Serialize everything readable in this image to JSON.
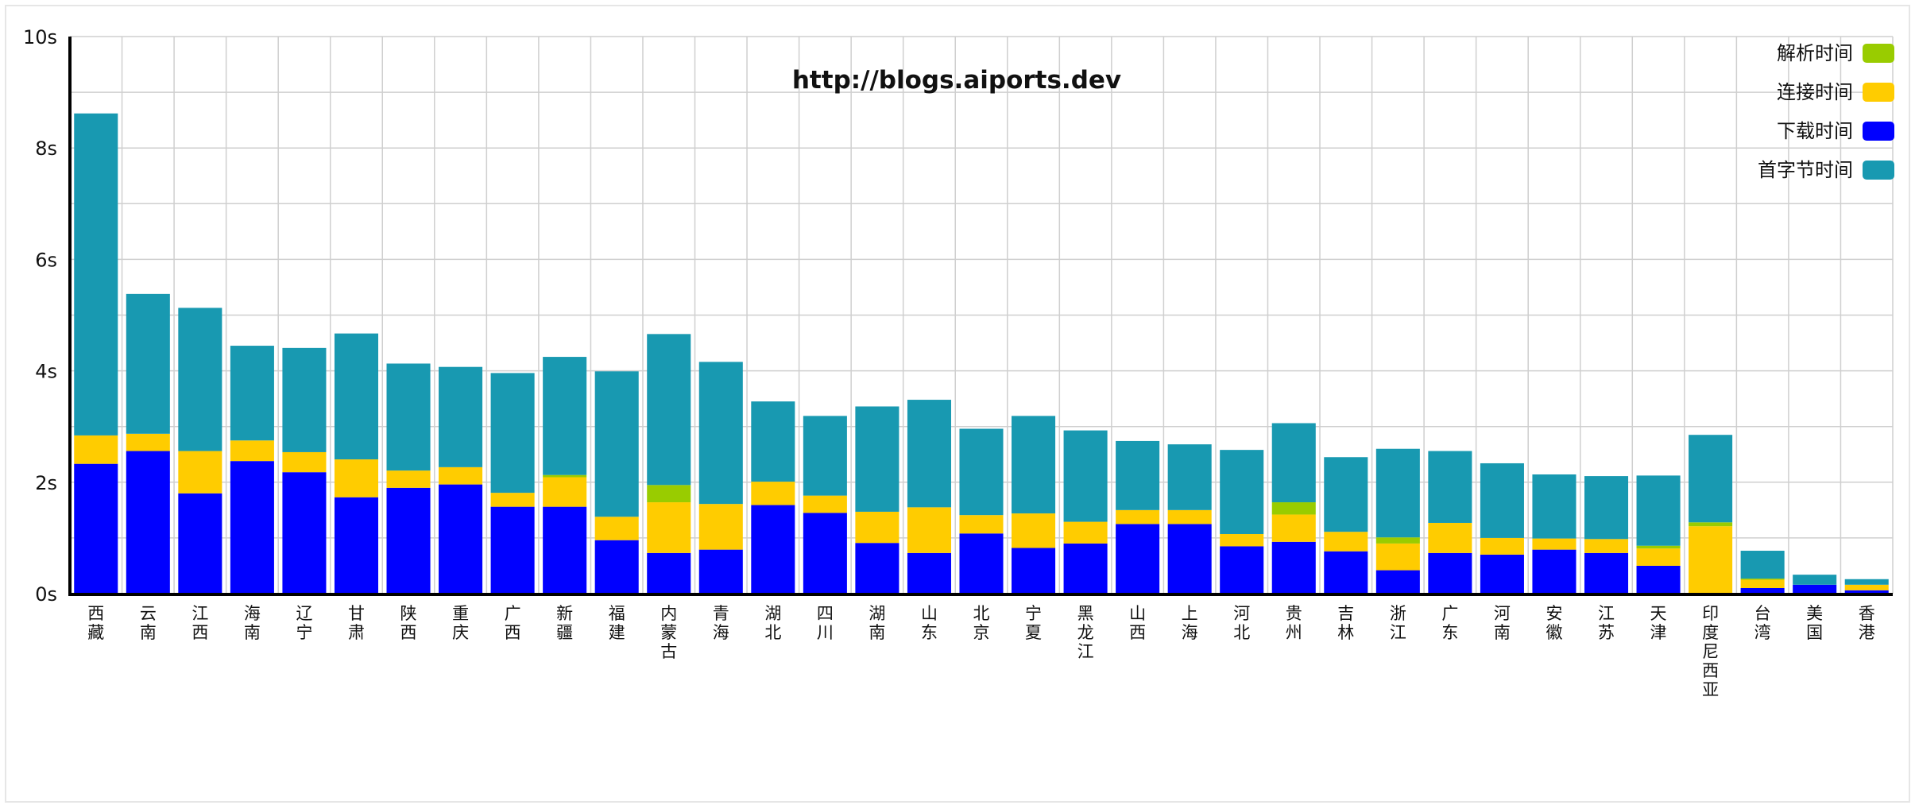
{
  "chart_data": {
    "type": "bar",
    "stacked": true,
    "title": "http://blogs.aiports.dev",
    "ylim": [
      0,
      10
    ],
    "y_ticks": [
      "0s",
      "2s",
      "4s",
      "6s",
      "8s",
      "10s"
    ],
    "y_tick_values": [
      0,
      2,
      4,
      6,
      8,
      10
    ],
    "grid": true,
    "legend_position": "top-right",
    "categories": [
      "西藏",
      "云南",
      "江西",
      "海南",
      "辽宁",
      "甘肃",
      "陕西",
      "重庆",
      "广西",
      "新疆",
      "福建",
      "内蒙古",
      "青海",
      "湖北",
      "四川",
      "湖南",
      "山东",
      "北京",
      "宁夏",
      "黑龙江",
      "山西",
      "上海",
      "河北",
      "贵州",
      "吉林",
      "浙江",
      "广东",
      "河南",
      "安徽",
      "江苏",
      "天津",
      "印度尼西亚",
      "台湾",
      "美国",
      "香港"
    ],
    "series": [
      {
        "name": "下载时间",
        "color": "#0000ff",
        "values": [
          2.33,
          2.56,
          1.8,
          2.38,
          2.18,
          1.73,
          1.9,
          1.96,
          1.56,
          1.56,
          0.96,
          0.73,
          0.79,
          1.59,
          1.45,
          0.91,
          0.73,
          1.08,
          0.82,
          0.9,
          1.25,
          1.25,
          0.85,
          0.93,
          0.76,
          0.42,
          0.73,
          0.7,
          0.79,
          0.73,
          0.5,
          0.0,
          0.1,
          0.16,
          0.06
        ]
      },
      {
        "name": "连接时间",
        "color": "#ffcc00",
        "values": [
          0.51,
          0.31,
          0.76,
          0.37,
          0.36,
          0.68,
          0.31,
          0.31,
          0.25,
          0.53,
          0.42,
          0.91,
          0.82,
          0.42,
          0.31,
          0.56,
          0.82,
          0.33,
          0.62,
          0.39,
          0.25,
          0.25,
          0.22,
          0.49,
          0.35,
          0.48,
          0.54,
          0.3,
          0.2,
          0.25,
          0.31,
          1.21,
          0.15,
          0.0,
          0.1
        ]
      },
      {
        "name": "解析时间",
        "color": "#99cc00",
        "values": [
          0.0,
          0.0,
          0.0,
          0.0,
          0.0,
          0.0,
          0.0,
          0.0,
          0.0,
          0.04,
          0.0,
          0.31,
          0.0,
          0.0,
          0.0,
          0.0,
          0.0,
          0.0,
          0.0,
          0.0,
          0.0,
          0.0,
          0.0,
          0.22,
          0.0,
          0.11,
          0.0,
          0.0,
          0.0,
          0.0,
          0.05,
          0.07,
          0.02,
          0.0,
          0.0
        ]
      },
      {
        "name": "首字节时间",
        "color": "#1899b1",
        "values": [
          5.78,
          2.51,
          2.57,
          1.7,
          1.87,
          2.26,
          1.92,
          1.8,
          2.15,
          2.12,
          2.61,
          2.71,
          2.55,
          1.44,
          1.43,
          1.89,
          1.93,
          1.55,
          1.75,
          1.64,
          1.24,
          1.18,
          1.51,
          1.42,
          1.34,
          1.59,
          1.29,
          1.34,
          1.15,
          1.13,
          1.26,
          1.57,
          0.5,
          0.18,
          0.1
        ]
      }
    ],
    "legend_order": [
      "解析时间",
      "连接时间",
      "下载时间",
      "首字节时间"
    ]
  }
}
